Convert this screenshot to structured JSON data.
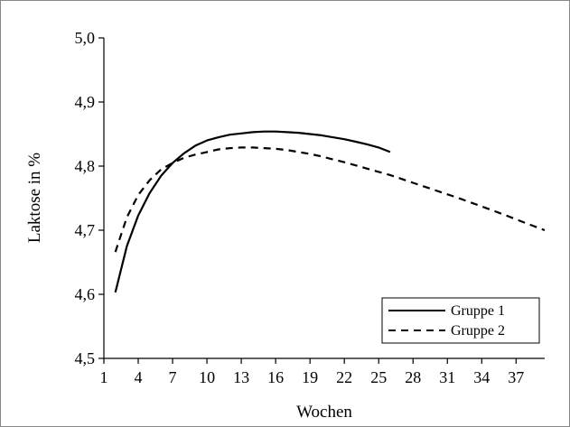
{
  "chart_data": {
    "type": "line",
    "title": "",
    "xlabel": "Wochen",
    "ylabel": "Laktose in %",
    "xlim": [
      1,
      39.5
    ],
    "ylim": [
      4.5,
      5.0
    ],
    "x_ticks": [
      1,
      4,
      7,
      10,
      13,
      16,
      19,
      22,
      25,
      28,
      31,
      34,
      37
    ],
    "x_tick_labels": [
      "1",
      "4",
      "7",
      "10",
      "13",
      "16",
      "19",
      "22",
      "25",
      "28",
      "31",
      "34",
      "37"
    ],
    "y_ticks": [
      4.5,
      4.6,
      4.7,
      4.8,
      4.9,
      5.0
    ],
    "y_tick_labels": [
      "4,5",
      "4,6",
      "4,7",
      "4,8",
      "4,9",
      "5,0"
    ],
    "grid": false,
    "legend_position": "bottom-right",
    "series": [
      {
        "name": "Gruppe 1",
        "style": "solid",
        "color": "#000000",
        "x": [
          2,
          3,
          4,
          5,
          6,
          7,
          8,
          9,
          10,
          11,
          12,
          13,
          14,
          15,
          16,
          17,
          18,
          19,
          20,
          21,
          22,
          23,
          24,
          25,
          26
        ],
        "y": [
          4.603,
          4.675,
          4.723,
          4.758,
          4.785,
          4.805,
          4.82,
          4.832,
          4.84,
          4.845,
          4.849,
          4.851,
          4.853,
          4.854,
          4.854,
          4.853,
          4.852,
          4.85,
          4.848,
          4.845,
          4.842,
          4.838,
          4.834,
          4.829,
          4.822
        ]
      },
      {
        "name": "Gruppe 2",
        "style": "dashed",
        "color": "#000000",
        "x": [
          2,
          3,
          4,
          5,
          6,
          7,
          8,
          9,
          10,
          11,
          12,
          13,
          14,
          15,
          16,
          17,
          18,
          19,
          20,
          22,
          24,
          26,
          28,
          30,
          32,
          34,
          36,
          38,
          39.5
        ],
        "y": [
          4.666,
          4.72,
          4.755,
          4.778,
          4.795,
          4.805,
          4.813,
          4.818,
          4.822,
          4.826,
          4.828,
          4.829,
          4.829,
          4.828,
          4.827,
          4.825,
          4.822,
          4.819,
          4.815,
          4.806,
          4.796,
          4.786,
          4.774,
          4.762,
          4.75,
          4.737,
          4.724,
          4.71,
          4.7
        ]
      }
    ]
  }
}
